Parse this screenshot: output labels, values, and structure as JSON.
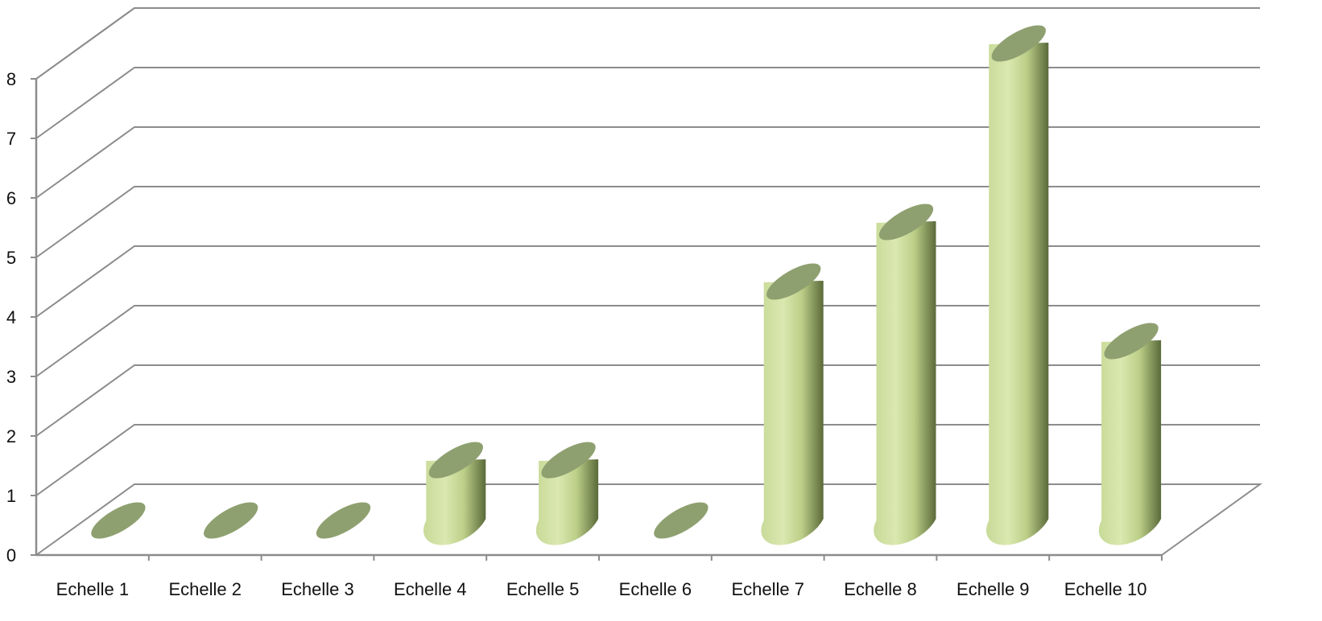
{
  "chart_data": {
    "type": "bar",
    "style": "3d-cylinder",
    "categories": [
      "Echelle 1",
      "Echelle 2",
      "Echelle 3",
      "Echelle 4",
      "Echelle 5",
      "Echelle 6",
      "Echelle 7",
      "Echelle 8",
      "Echelle 9",
      "Echelle 10"
    ],
    "series": [
      {
        "values": [
          0,
          0,
          0,
          1,
          1,
          0,
          4,
          5,
          8,
          3
        ]
      }
    ],
    "title": "",
    "xlabel": "",
    "ylabel": "",
    "ylim": [
      0,
      8
    ],
    "y_ticks": [
      "0",
      "1",
      "2",
      "3",
      "4",
      "5",
      "6",
      "7",
      "8"
    ],
    "grid": true,
    "legend": "none",
    "colors": {
      "bar_light": "#d4e3a6",
      "bar_mid": "#b8cc84",
      "bar_dark": "#5f6e3e",
      "bar_top": "#8fa070",
      "grid": "#8c8c8c",
      "axis": "#8c8c8c"
    }
  }
}
